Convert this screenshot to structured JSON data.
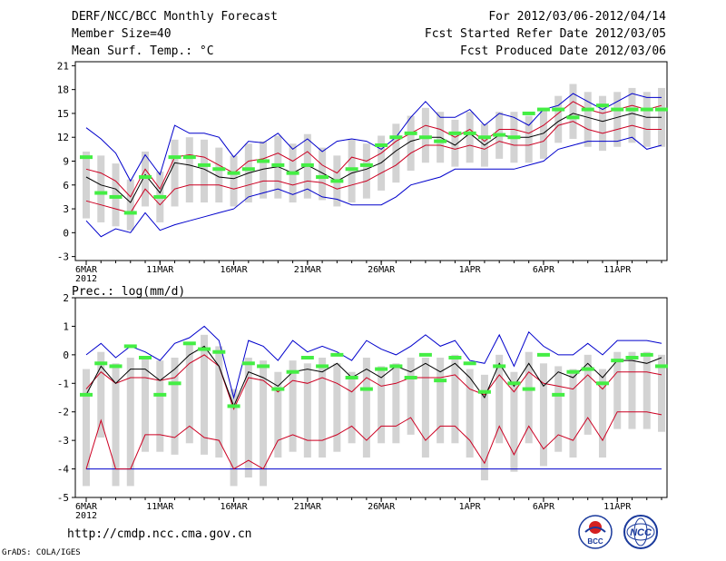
{
  "header": {
    "title": "DERF/NCC/BCC Monthly Forecast",
    "member_size": "Member Size=40",
    "variable": "Mean Surf. Temp.: °C",
    "period": "For 2012/03/06-2012/04/14",
    "started": "Fcst Started Refer Date 2012/03/05",
    "produced": "Fcst Produced Date 2012/03/06"
  },
  "footer": {
    "url": "http://cmdp.ncc.cma.gov.cn",
    "grads": "GrADS: COLA/IGES",
    "logo1": "BCC",
    "logo2": "NCC"
  },
  "colors": {
    "envelope": "#0000cc",
    "spread": "#cc0022",
    "mean": "#000000",
    "box": "#d3d3d3",
    "obs": "#44ee44"
  },
  "chart_data": [
    {
      "type": "line",
      "title": "Mean Surf. Temp.: °C",
      "x_tick_labels": [
        "6MAR",
        "11MAR",
        "16MAR",
        "21MAR",
        "26MAR",
        "1APR",
        "6APR",
        "11APR"
      ],
      "x_tick_days": [
        0,
        5,
        10,
        15,
        20,
        26,
        31,
        36
      ],
      "year_label": "2012",
      "y_ticks": [
        -3,
        0,
        3,
        6,
        9,
        12,
        15,
        18,
        21
      ],
      "ylim": [
        -3.5,
        21.5
      ],
      "days": 40,
      "series": [
        {
          "name": "max",
          "values": [
            13.2,
            11.8,
            10.0,
            6.5,
            9.8,
            7.3,
            13.5,
            12.5,
            12.5,
            12.0,
            9.5,
            11.5,
            11.3,
            12.5,
            10.5,
            11.8,
            10.2,
            11.5,
            11.8,
            11.5,
            10.5,
            12.0,
            14.5,
            16.5,
            14.5,
            14.5,
            15.5,
            13.5,
            15.0,
            14.5,
            13.5,
            15.5,
            16.0,
            17.5,
            16.5,
            15.5,
            16.5,
            17.5,
            17.0,
            17.0
          ]
        },
        {
          "name": "upper",
          "values": [
            8.0,
            7.5,
            6.5,
            4.5,
            8.0,
            5.5,
            9.5,
            9.8,
            9.5,
            8.5,
            7.5,
            9.0,
            9.3,
            10.0,
            9.0,
            10.2,
            8.5,
            7.5,
            9.5,
            9.0,
            10.0,
            11.5,
            12.5,
            13.5,
            13.0,
            12.0,
            13.0,
            11.5,
            13.0,
            13.0,
            12.5,
            13.5,
            15.0,
            16.5,
            15.5,
            15.0,
            15.5,
            16.0,
            15.5,
            16.0
          ]
        },
        {
          "name": "mean",
          "values": [
            7.0,
            6.0,
            5.5,
            3.8,
            7.3,
            5.0,
            8.8,
            8.5,
            8.0,
            7.0,
            6.8,
            7.5,
            8.0,
            8.3,
            7.5,
            8.5,
            7.5,
            6.5,
            7.5,
            8.0,
            8.8,
            10.3,
            11.5,
            12.0,
            12.0,
            11.0,
            12.5,
            11.0,
            12.3,
            12.0,
            12.0,
            12.5,
            14.0,
            15.0,
            14.5,
            14.0,
            14.5,
            15.0,
            14.5,
            14.5
          ]
        },
        {
          "name": "lower",
          "values": [
            4.0,
            3.5,
            3.0,
            2.5,
            5.5,
            3.5,
            5.5,
            6.0,
            6.0,
            6.0,
            5.5,
            6.0,
            6.5,
            6.5,
            6.0,
            6.5,
            6.3,
            5.5,
            6.0,
            6.5,
            7.5,
            8.5,
            10.0,
            11.0,
            11.0,
            10.5,
            11.0,
            10.5,
            11.5,
            11.0,
            11.0,
            11.5,
            13.5,
            14.0,
            13.0,
            12.5,
            13.0,
            13.5,
            13.0,
            13.0
          ]
        },
        {
          "name": "min",
          "values": [
            1.5,
            -0.5,
            0.5,
            0.0,
            2.5,
            0.3,
            1.0,
            1.5,
            2.0,
            2.5,
            3.0,
            4.5,
            5.0,
            5.5,
            4.8,
            5.5,
            4.5,
            4.2,
            3.5,
            3.5,
            3.5,
            4.5,
            6.0,
            6.5,
            7.0,
            8.0,
            8.0,
            8.0,
            8.0,
            8.0,
            8.5,
            9.0,
            10.5,
            11.0,
            11.5,
            11.5,
            11.5,
            12.0,
            10.5,
            11.0
          ]
        },
        {
          "name": "obs",
          "values": [
            9.5,
            5.0,
            4.5,
            2.5,
            7.0,
            4.5,
            9.5,
            9.5,
            8.5,
            8.0,
            7.5,
            8.0,
            9.0,
            8.5,
            7.5,
            8.5,
            7.0,
            6.5,
            8.0,
            8.5,
            11.0,
            12.0,
            12.5,
            12.0,
            11.5,
            12.5,
            12.5,
            12.0,
            12.3,
            12.0,
            15.0,
            15.5,
            15.5,
            14.5,
            15.5,
            16.0,
            15.5,
            15.5,
            15.5,
            15.5
          ]
        }
      ]
    },
    {
      "type": "line",
      "title": "Prec.: log(mm/d)",
      "x_tick_labels": [
        "6MAR",
        "11MAR",
        "16MAR",
        "21MAR",
        "26MAR",
        "1APR",
        "6APR",
        "11APR"
      ],
      "x_tick_days": [
        0,
        5,
        10,
        15,
        20,
        26,
        31,
        36
      ],
      "year_label": "2012",
      "y_ticks": [
        -5,
        -4,
        -3,
        -2,
        -1,
        0,
        1,
        2
      ],
      "ylim": [
        -5,
        2
      ],
      "days": 40,
      "series": [
        {
          "name": "max",
          "values": [
            0.0,
            0.4,
            -0.1,
            0.3,
            0.1,
            -0.2,
            0.4,
            0.6,
            1.0,
            0.5,
            -1.5,
            0.5,
            0.3,
            -0.2,
            0.5,
            0.1,
            0.3,
            0.1,
            -0.2,
            0.5,
            0.2,
            0.0,
            0.3,
            0.7,
            0.3,
            0.5,
            -0.2,
            -0.3,
            0.7,
            -0.4,
            0.8,
            0.3,
            0.0,
            0.0,
            0.4,
            0.0,
            0.5,
            0.5,
            0.5,
            0.4
          ]
        },
        {
          "name": "upper",
          "values": [
            -1.2,
            -0.6,
            -1.0,
            -0.8,
            -0.8,
            -0.9,
            -0.8,
            -0.3,
            0.0,
            -0.4,
            -1.9,
            -0.8,
            -0.9,
            -1.3,
            -0.9,
            -1.0,
            -0.8,
            -1.0,
            -1.3,
            -0.8,
            -1.1,
            -1.0,
            -0.8,
            -0.8,
            -0.8,
            -0.7,
            -1.2,
            -1.4,
            -0.7,
            -1.3,
            -0.6,
            -1.0,
            -1.1,
            -1.2,
            -0.7,
            -1.2,
            -0.6,
            -0.6,
            -0.6,
            -0.7
          ]
        },
        {
          "name": "mean",
          "values": [
            -1.4,
            -0.4,
            -1.0,
            -0.5,
            -0.5,
            -0.9,
            -0.5,
            0.0,
            0.3,
            -0.4,
            -1.8,
            -0.6,
            -0.8,
            -1.1,
            -0.6,
            -0.5,
            -0.6,
            -0.3,
            -0.8,
            -0.5,
            -0.8,
            -0.4,
            -0.6,
            -0.3,
            -0.6,
            -0.3,
            -0.8,
            -1.5,
            -0.3,
            -1.1,
            -0.3,
            -1.1,
            -0.6,
            -0.8,
            -0.3,
            -0.8,
            -0.2,
            -0.2,
            -0.3,
            -0.1
          ]
        },
        {
          "name": "lower",
          "values": [
            -4.0,
            -2.3,
            -4.0,
            -4.0,
            -2.8,
            -2.8,
            -2.9,
            -2.5,
            -2.9,
            -3.0,
            -4.0,
            -3.7,
            -4.0,
            -3.0,
            -2.8,
            -3.0,
            -3.0,
            -2.8,
            -2.5,
            -3.0,
            -2.5,
            -2.5,
            -2.2,
            -3.0,
            -2.5,
            -2.5,
            -3.0,
            -3.8,
            -2.5,
            -3.5,
            -2.5,
            -3.3,
            -2.8,
            -3.0,
            -2.2,
            -3.0,
            -2.0,
            -2.0,
            -2.0,
            -2.1
          ]
        },
        {
          "name": "min",
          "values": [
            -4.0,
            -4.0,
            -4.0,
            -4.0,
            -4.0,
            -4.0,
            -4.0,
            -4.0,
            -4.0,
            -4.0,
            -4.0,
            -4.0,
            -4.0,
            -4.0,
            -4.0,
            -4.0,
            -4.0,
            -4.0,
            -4.0,
            -4.0,
            -4.0,
            -4.0,
            -4.0,
            -4.0,
            -4.0,
            -4.0,
            -4.0,
            -4.0,
            -4.0,
            -4.0,
            -4.0,
            -4.0,
            -4.0,
            -4.0,
            -4.0,
            -4.0,
            -4.0,
            -4.0,
            -4.0,
            -4.0
          ]
        },
        {
          "name": "obs",
          "values": [
            -1.4,
            -0.3,
            -0.4,
            0.3,
            -0.1,
            -1.4,
            -1.0,
            0.4,
            0.2,
            0.1,
            -1.8,
            -0.3,
            -0.4,
            -1.2,
            -0.6,
            -0.1,
            -0.4,
            0.0,
            -0.8,
            -1.2,
            -0.5,
            -0.4,
            -0.8,
            0.0,
            -0.9,
            -0.1,
            -0.3,
            -1.3,
            -0.4,
            -1.0,
            -1.2,
            0.0,
            -1.4,
            -0.6,
            -0.5,
            -1.0,
            -0.2,
            -0.1,
            0.0,
            -0.4
          ]
        }
      ]
    }
  ]
}
